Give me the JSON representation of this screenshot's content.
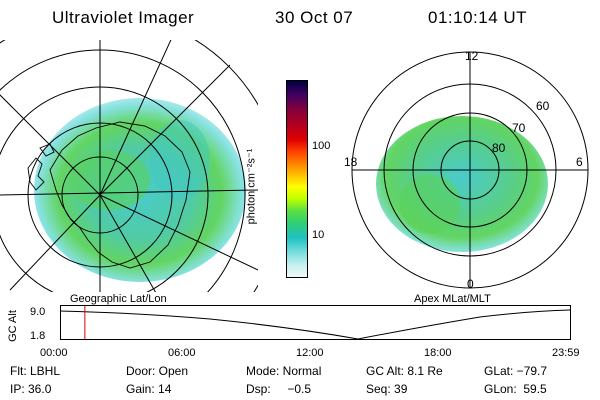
{
  "header": {
    "title": "Ultraviolet Imager",
    "date": "30 Oct 07",
    "time": "01:10:14 UT"
  },
  "left_map": {
    "label": "Geographic Lat/Lon"
  },
  "right_map": {
    "label": "Apex MLat/MLT",
    "clock_labels": {
      "top": "12",
      "bottom": "0",
      "left": "18",
      "right": "6"
    },
    "lat_labels": [
      "60",
      "70",
      "80"
    ]
  },
  "colorbar": {
    "unit_label": "photon cm⁻²s⁻¹",
    "ticks": [
      "100",
      "10"
    ],
    "colors": [
      "#000040",
      "#400060",
      "#800040",
      "#b00020",
      "#e00000",
      "#ff4000",
      "#ff8000",
      "#ffc000",
      "#ffff00",
      "#c0ff00",
      "#60e040",
      "#30d070",
      "#20c0c0",
      "#80e0e0",
      "#c8f0f0",
      "#f0f8f8"
    ]
  },
  "timeline": {
    "y_axis_label": "GC Alt",
    "y_ticks": [
      "9.0",
      "1.8"
    ],
    "x_ticks": [
      "00:00",
      "06:00",
      "12:00",
      "18:00",
      "23:59"
    ],
    "current_marker_hours": 1.17,
    "marker_color": "#e00000"
  },
  "info": {
    "row1": {
      "flt": "Flt: LBHL",
      "door": "Door: Open",
      "mode": "Mode: Normal",
      "gc_alt": "GC Alt: 8.1 Re",
      "glat": "GLat: −79.7"
    },
    "row2": {
      "ip": "IP: 36.0",
      "gain": "Gain: 14",
      "dsp": "Dsp:     −0.5",
      "seq": "Seq: 39",
      "glon": "GLon:  59.5"
    }
  },
  "colors": {
    "aurora_green": "#5ad25a",
    "aurora_cyan": "#40c8c8",
    "aurora_light": "#c8eef0"
  }
}
